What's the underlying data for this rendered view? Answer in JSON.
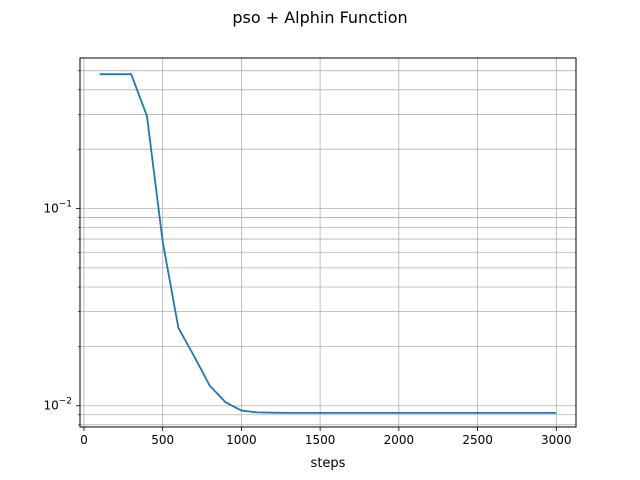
{
  "chart_data": {
    "type": "line",
    "title": "pso + Alphin Function",
    "xlabel": "steps",
    "ylabel": "",
    "y_scale": "log",
    "xlim": [
      -25,
      3125
    ],
    "ylim": [
      0.0078,
      0.58
    ],
    "x_ticks": [
      0,
      500,
      1000,
      1500,
      2000,
      2500,
      3000
    ],
    "x_tick_labels": [
      "0",
      "500",
      "1000",
      "1500",
      "2000",
      "2500",
      "3000"
    ],
    "y_major_ticks": [
      0.01,
      0.1
    ],
    "y_major_tick_labels": [
      {
        "base": "10",
        "exp": "−2"
      },
      {
        "base": "10",
        "exp": "−1"
      }
    ],
    "grid": true,
    "line_color": "#1f77b4",
    "series": [
      {
        "name": "",
        "x": [
          100,
          200,
          300,
          400,
          500,
          600,
          700,
          800,
          900,
          1000,
          1100,
          1200,
          1300,
          1400,
          1500,
          1600,
          1700,
          1800,
          1900,
          2000,
          2100,
          2200,
          2300,
          2400,
          2500,
          2600,
          2700,
          2800,
          2900,
          3000
        ],
        "values": [
          0.48,
          0.48,
          0.48,
          0.295,
          0.068,
          0.0248,
          0.0178,
          0.0126,
          0.0104,
          0.00945,
          0.00925,
          0.00922,
          0.0092,
          0.0092,
          0.0092,
          0.0092,
          0.0092,
          0.0092,
          0.0092,
          0.0092,
          0.0092,
          0.0092,
          0.0092,
          0.0092,
          0.0092,
          0.0092,
          0.0092,
          0.0092,
          0.0092,
          0.0092
        ]
      }
    ]
  }
}
